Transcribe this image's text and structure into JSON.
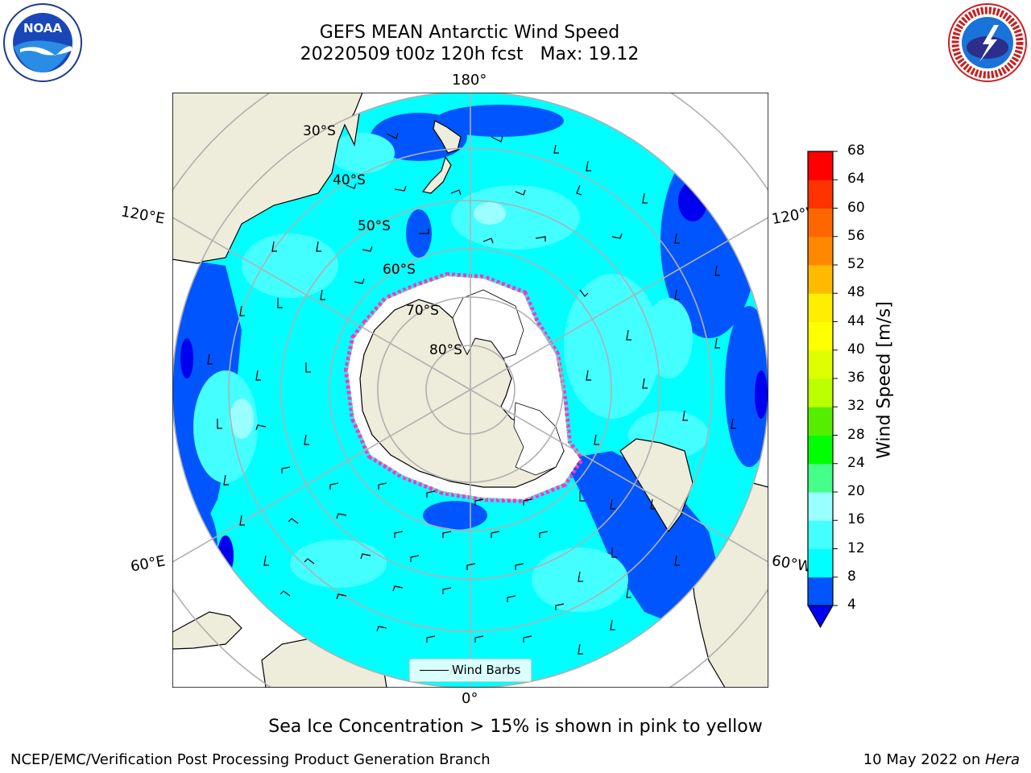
{
  "title": {
    "line1": "GEFS MEAN Antarctic Wind Speed",
    "line2": "20220509 t00z 120h fcst   Max: 19.12"
  },
  "logos": {
    "left": {
      "icon": "noaa-logo",
      "text": "NOAA",
      "ring_text": "NATIONAL OCEANIC AND ATMOSPHERIC ADMINISTRATION · U.S. DEPARTMENT OF COMMERCE"
    },
    "right": {
      "icon": "nws-logo",
      "ring_text": "NATIONAL WEATHER SERVICE"
    }
  },
  "map": {
    "projection": "south-polar-stereographic",
    "longitude_labels": {
      "top": "180°",
      "bottom": "0°",
      "left_upper": "120°E",
      "left_lower": "60°E",
      "right_upper": "120°W",
      "right_lower": "60°W"
    },
    "latitude_labels": [
      "30°S",
      "40°S",
      "50°S",
      "60°S",
      "70°S",
      "80°S"
    ],
    "colors": {
      "land": "#eeecdb",
      "ice": "#ffffff",
      "ice_edge": [
        "#ff33cc",
        "#ffcc00"
      ]
    }
  },
  "legend": {
    "label": "Wind Barbs",
    "icon": "barb-line"
  },
  "colorbar": {
    "title": "Wind Speed [m/s]",
    "ticks": [
      4,
      8,
      12,
      16,
      20,
      24,
      28,
      32,
      36,
      40,
      44,
      48,
      52,
      56,
      60,
      64,
      68
    ],
    "colors": [
      "#0055ff",
      "#00ffff",
      "#44ffff",
      "#99ffff",
      "#44ff88",
      "#00ff00",
      "#55ee00",
      "#bbff00",
      "#ddff00",
      "#ffff00",
      "#ffee00",
      "#ffbb00",
      "#ff8800",
      "#ff6600",
      "#ff3300",
      "#ff0000"
    ],
    "extend_color": "#0000ee"
  },
  "caption": "Sea Ice Concentration > 15% is shown in pink to yellow",
  "footer": {
    "left": "NCEP/EMC/Verification Post Processing Product Generation Branch",
    "right_prefix": "10 May 2022 on ",
    "right_host": "Hera"
  }
}
